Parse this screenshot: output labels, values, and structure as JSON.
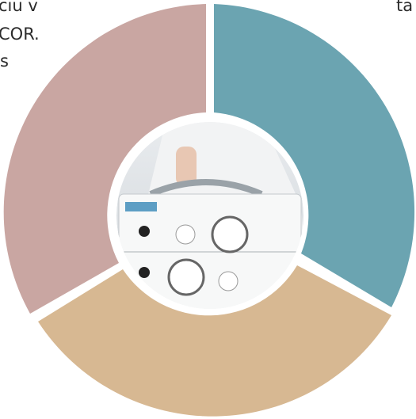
{
  "text_left": [
    "ciu v",
    "COR.",
    "s"
  ],
  "text_right": "ta"
}
